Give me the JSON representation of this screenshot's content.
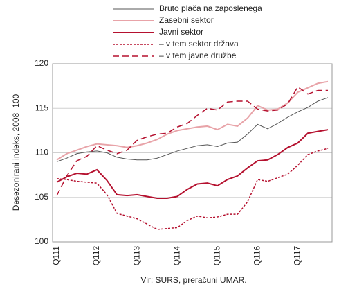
{
  "chart_data": {
    "type": "line",
    "y_label": "Desezonirani indeks, 2008=100",
    "source": "Vir: SURS, preračuni UMAR.",
    "categories": [
      "Q111",
      null,
      null,
      null,
      "Q112",
      null,
      null,
      null,
      "Q113",
      null,
      null,
      null,
      "Q114",
      null,
      null,
      null,
      "Q115",
      null,
      null,
      null,
      "Q116",
      null,
      null,
      null,
      "Q117",
      null,
      null,
      null
    ],
    "ylim": [
      100,
      120
    ],
    "yticks": [
      100,
      105,
      110,
      115,
      120
    ],
    "grid": true,
    "series": [
      {
        "name": "Bruto plača na zaposlenega",
        "color": "#555555",
        "dash": "solid",
        "width": 1,
        "values": [
          109.0,
          109.4,
          109.9,
          110.1,
          110.2,
          110.0,
          109.5,
          109.3,
          109.2,
          109.2,
          109.4,
          109.8,
          110.2,
          110.5,
          110.8,
          110.9,
          110.7,
          111.1,
          111.2,
          112.1,
          113.2,
          112.7,
          113.3,
          114.0,
          114.6,
          115.1,
          115.8,
          116.2
        ]
      },
      {
        "name": "Zasebni sektor",
        "color": "#e8a3a8",
        "dash": "solid",
        "width": 2,
        "values": [
          109.2,
          109.9,
          110.3,
          110.7,
          111.0,
          110.9,
          110.8,
          110.6,
          110.8,
          111.1,
          111.5,
          112.1,
          112.5,
          112.7,
          112.9,
          113.0,
          112.6,
          113.2,
          113.0,
          113.9,
          115.3,
          114.8,
          114.9,
          115.6,
          116.8,
          117.3,
          117.8,
          118.0
        ]
      },
      {
        "name": "Javni sektor",
        "color": "#b5112f",
        "dash": "solid",
        "width": 2,
        "values": [
          106.7,
          107.3,
          107.7,
          107.6,
          108.1,
          106.9,
          105.3,
          105.2,
          105.3,
          105.1,
          104.9,
          104.9,
          105.1,
          105.9,
          106.5,
          106.6,
          106.3,
          107.0,
          107.4,
          108.3,
          109.1,
          109.2,
          109.8,
          110.6,
          111.1,
          112.2,
          112.4,
          112.6
        ]
      },
      {
        "name": "– v tem sektor država",
        "color": "#b5112f",
        "dash": "dotted",
        "width": 1.5,
        "values": [
          107.1,
          107.0,
          106.8,
          106.7,
          106.6,
          105.3,
          103.2,
          102.9,
          102.6,
          102.0,
          101.4,
          101.5,
          101.6,
          102.4,
          102.9,
          102.7,
          102.8,
          103.1,
          103.1,
          104.5,
          107.0,
          106.8,
          107.2,
          107.6,
          108.6,
          109.8,
          110.2,
          110.5
        ]
      },
      {
        "name": "– v tem javne družbe",
        "color": "#b5112f",
        "dash": "dashed",
        "width": 1.5,
        "values": [
          105.2,
          107.4,
          109.1,
          109.6,
          110.8,
          110.3,
          109.9,
          110.3,
          111.4,
          111.8,
          112.1,
          112.2,
          112.9,
          113.3,
          114.2,
          115.0,
          114.8,
          115.7,
          115.8,
          115.8,
          114.9,
          114.7,
          114.8,
          115.5,
          117.4,
          116.6,
          117.0,
          117.0
        ]
      }
    ]
  }
}
